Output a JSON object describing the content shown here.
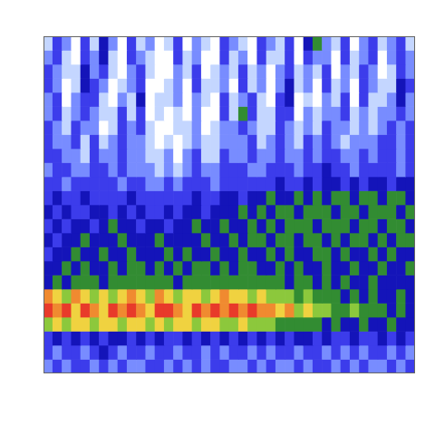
{
  "chart_data": {
    "type": "heatmap",
    "xlim": [
      0,
      40
    ],
    "ylim": [
      0,
      24
    ],
    "grid": false,
    "tick_labels": false,
    "color_range": [
      0,
      9
    ],
    "cells": [
      [
        1,
        3,
        2,
        0,
        3,
        1,
        4,
        2,
        0,
        3,
        1,
        2,
        0,
        1,
        3,
        0,
        2,
        1,
        0,
        3,
        2,
        1,
        0,
        3,
        2,
        1,
        3,
        0,
        4,
        5,
        2,
        1,
        3,
        0,
        2,
        3,
        1,
        2,
        3,
        1
      ],
      [
        2,
        3,
        1,
        0,
        3,
        2,
        4,
        1,
        0,
        3,
        2,
        1,
        0,
        0,
        3,
        1,
        2,
        0,
        0,
        3,
        1,
        2,
        0,
        3,
        1,
        1,
        3,
        0,
        3,
        2,
        2,
        0,
        3,
        1,
        2,
        3,
        0,
        2,
        3,
        2
      ],
      [
        3,
        2,
        1,
        1,
        4,
        2,
        3,
        1,
        0,
        2,
        3,
        1,
        0,
        0,
        2,
        1,
        3,
        0,
        1,
        2,
        1,
        3,
        1,
        2,
        0,
        2,
        3,
        1,
        2,
        1,
        3,
        0,
        2,
        1,
        3,
        2,
        0,
        1,
        3,
        2
      ],
      [
        3,
        2,
        0,
        1,
        4,
        3,
        2,
        0,
        1,
        2,
        3,
        0,
        0,
        1,
        2,
        0,
        3,
        1,
        1,
        2,
        0,
        3,
        1,
        2,
        0,
        2,
        4,
        1,
        2,
        0,
        3,
        1,
        2,
        0,
        3,
        2,
        1,
        1,
        4,
        3
      ],
      [
        2,
        3,
        0,
        2,
        3,
        3,
        1,
        0,
        2,
        1,
        4,
        0,
        1,
        1,
        2,
        0,
        2,
        1,
        0,
        3,
        1,
        2,
        3,
        1,
        0,
        3,
        4,
        0,
        1,
        0,
        2,
        1,
        3,
        0,
        3,
        1,
        1,
        2,
        4,
        2
      ],
      [
        2,
        3,
        1,
        2,
        3,
        2,
        1,
        1,
        3,
        1,
        3,
        0,
        1,
        0,
        1,
        0,
        2,
        0,
        0,
        3,
        1,
        5,
        3,
        1,
        1,
        3,
        3,
        0,
        2,
        1,
        2,
        2,
        3,
        1,
        2,
        1,
        2,
        2,
        3,
        2
      ],
      [
        3,
        2,
        1,
        3,
        2,
        2,
        0,
        1,
        3,
        2,
        3,
        1,
        0,
        0,
        1,
        1,
        2,
        0,
        1,
        2,
        2,
        3,
        2,
        1,
        1,
        3,
        2,
        1,
        2,
        1,
        3,
        2,
        2,
        1,
        2,
        1,
        2,
        3,
        2,
        3
      ],
      [
        3,
        2,
        2,
        3,
        1,
        3,
        1,
        2,
        3,
        2,
        2,
        1,
        0,
        1,
        0,
        1,
        2,
        1,
        1,
        2,
        2,
        2,
        3,
        1,
        2,
        3,
        2,
        1,
        3,
        2,
        3,
        2,
        1,
        2,
        2,
        2,
        3,
        3,
        2,
        3
      ],
      [
        3,
        3,
        2,
        2,
        1,
        3,
        2,
        2,
        3,
        2,
        2,
        1,
        1,
        2,
        0,
        2,
        3,
        1,
        1,
        3,
        2,
        2,
        3,
        2,
        2,
        3,
        2,
        2,
        3,
        2,
        3,
        3,
        2,
        2,
        3,
        2,
        3,
        3,
        2,
        3
      ],
      [
        2,
        3,
        3,
        2,
        2,
        3,
        3,
        2,
        3,
        2,
        2,
        2,
        1,
        2,
        1,
        2,
        3,
        2,
        2,
        3,
        3,
        3,
        2,
        2,
        3,
        3,
        3,
        2,
        3,
        3,
        4,
        3,
        3,
        2,
        3,
        3,
        3,
        3,
        2,
        3
      ],
      [
        3,
        3,
        2,
        3,
        3,
        3,
        3,
        3,
        2,
        3,
        3,
        2,
        2,
        3,
        2,
        3,
        3,
        3,
        2,
        3,
        3,
        3,
        3,
        3,
        3,
        4,
        3,
        3,
        4,
        3,
        4,
        4,
        3,
        4,
        3,
        4,
        4,
        3,
        4,
        4
      ],
      [
        3,
        4,
        3,
        3,
        4,
        3,
        3,
        3,
        3,
        4,
        3,
        3,
        3,
        3,
        3,
        3,
        4,
        3,
        3,
        4,
        4,
        3,
        4,
        4,
        5,
        4,
        4,
        5,
        4,
        5,
        4,
        5,
        5,
        4,
        5,
        5,
        4,
        5,
        5,
        4
      ],
      [
        4,
        3,
        4,
        3,
        3,
        4,
        4,
        3,
        4,
        3,
        4,
        3,
        3,
        4,
        3,
        4,
        4,
        3,
        4,
        4,
        4,
        5,
        4,
        5,
        4,
        5,
        5,
        4,
        5,
        5,
        5,
        4,
        5,
        5,
        4,
        5,
        5,
        5,
        4,
        5
      ],
      [
        3,
        4,
        3,
        4,
        4,
        3,
        4,
        5,
        4,
        4,
        3,
        4,
        4,
        3,
        4,
        4,
        5,
        4,
        4,
        5,
        4,
        4,
        5,
        4,
        5,
        4,
        5,
        5,
        5,
        4,
        5,
        5,
        5,
        4,
        5,
        5,
        4,
        5,
        5,
        4
      ],
      [
        4,
        3,
        4,
        4,
        5,
        4,
        4,
        4,
        5,
        4,
        4,
        4,
        5,
        4,
        4,
        4,
        4,
        5,
        4,
        4,
        5,
        4,
        5,
        5,
        4,
        5,
        5,
        4,
        5,
        5,
        4,
        5,
        4,
        5,
        5,
        4,
        5,
        4,
        5,
        5
      ],
      [
        3,
        4,
        4,
        5,
        4,
        4,
        5,
        4,
        4,
        5,
        4,
        4,
        4,
        5,
        4,
        5,
        4,
        4,
        5,
        4,
        4,
        5,
        4,
        4,
        5,
        4,
        5,
        4,
        4,
        5,
        5,
        4,
        5,
        4,
        4,
        5,
        4,
        5,
        4,
        4
      ],
      [
        4,
        4,
        5,
        4,
        5,
        4,
        4,
        5,
        4,
        5,
        5,
        4,
        5,
        4,
        5,
        4,
        5,
        5,
        4,
        5,
        4,
        5,
        5,
        4,
        4,
        5,
        4,
        5,
        4,
        4,
        5,
        4,
        4,
        5,
        4,
        4,
        5,
        4,
        4,
        5
      ],
      [
        4,
        5,
        4,
        5,
        5,
        5,
        4,
        5,
        5,
        5,
        5,
        5,
        5,
        5,
        4,
        5,
        5,
        5,
        5,
        5,
        5,
        5,
        5,
        5,
        5,
        5,
        4,
        5,
        5,
        4,
        5,
        4,
        5,
        4,
        4,
        5,
        4,
        4,
        4,
        4
      ],
      [
        8,
        7,
        6,
        8,
        7,
        6,
        7,
        6,
        7,
        8,
        7,
        6,
        8,
        7,
        6,
        7,
        7,
        6,
        7,
        8,
        7,
        7,
        6,
        7,
        6,
        6,
        6,
        5,
        6,
        5,
        5,
        5,
        4,
        5,
        4,
        5,
        4,
        4,
        5,
        4
      ],
      [
        9,
        8,
        9,
        7,
        9,
        8,
        7,
        9,
        8,
        9,
        8,
        7,
        9,
        9,
        8,
        7,
        9,
        8,
        9,
        8,
        9,
        8,
        9,
        8,
        8,
        7,
        8,
        6,
        7,
        6,
        6,
        5,
        5,
        6,
        5,
        5,
        5,
        4,
        5,
        4
      ],
      [
        6,
        7,
        6,
        7,
        7,
        6,
        7,
        7,
        6,
        7,
        7,
        6,
        7,
        6,
        7,
        7,
        6,
        7,
        7,
        6,
        6,
        7,
        6,
        6,
        6,
        5,
        5,
        5,
        5,
        5,
        4,
        5,
        4,
        4,
        5,
        4,
        4,
        5,
        4,
        4
      ],
      [
        3,
        4,
        3,
        4,
        3,
        4,
        3,
        4,
        4,
        3,
        4,
        3,
        4,
        3,
        3,
        4,
        3,
        4,
        3,
        4,
        3,
        4,
        3,
        4,
        3,
        4,
        3,
        4,
        4,
        3,
        4,
        3,
        3,
        4,
        3,
        3,
        4,
        3,
        4,
        3
      ],
      [
        3,
        2,
        3,
        3,
        2,
        3,
        4,
        3,
        2,
        3,
        3,
        2,
        3,
        3,
        2,
        3,
        3,
        2,
        3,
        2,
        3,
        3,
        2,
        3,
        2,
        3,
        3,
        2,
        3,
        3,
        2,
        3,
        2,
        3,
        2,
        3,
        3,
        2,
        3,
        2
      ],
      [
        2,
        3,
        2,
        3,
        3,
        2,
        3,
        2,
        3,
        2,
        2,
        3,
        3,
        2,
        3,
        2,
        3,
        2,
        3,
        3,
        2,
        2,
        3,
        2,
        3,
        2,
        2,
        3,
        2,
        3,
        3,
        2,
        3,
        2,
        3,
        2,
        2,
        3,
        2,
        3
      ]
    ]
  }
}
